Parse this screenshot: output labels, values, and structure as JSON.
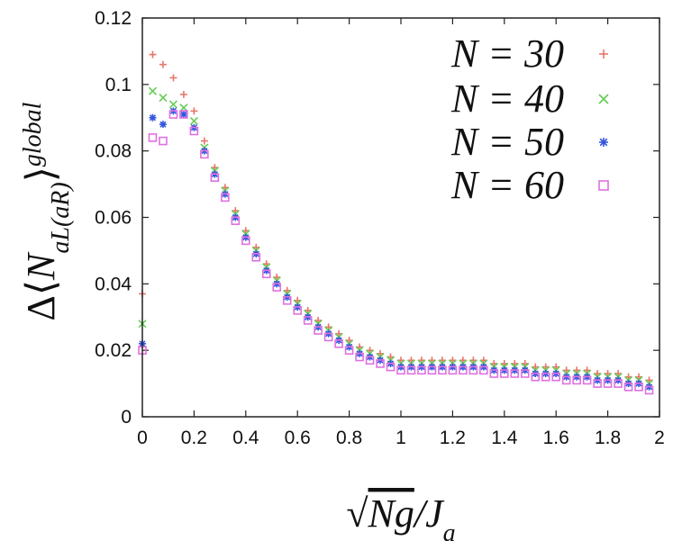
{
  "chart_data": {
    "type": "scatter",
    "xlabel": "√Ng/J_a",
    "ylabel": "Δ⟨N_aL(aR)⟩^global",
    "xlim": [
      0,
      2
    ],
    "ylim": [
      0,
      0.12
    ],
    "xticks": [
      "0",
      "0.2",
      "0.4",
      "0.6",
      "0.8",
      "1",
      "1.2",
      "1.4",
      "1.6",
      "1.8",
      "2"
    ],
    "yticks": [
      "0",
      "0.02",
      "0.04",
      "0.06",
      "0.08",
      "0.1",
      "0.12"
    ],
    "legend_position": "top-right",
    "x": [
      0,
      0.04,
      0.08,
      0.12,
      0.16,
      0.2,
      0.24,
      0.28,
      0.32,
      0.36,
      0.4,
      0.44,
      0.48,
      0.52,
      0.56,
      0.6,
      0.64,
      0.68,
      0.72,
      0.76,
      0.8,
      0.84,
      0.88,
      0.92,
      0.96,
      1.0,
      1.04,
      1.08,
      1.12,
      1.16,
      1.2,
      1.24,
      1.28,
      1.32,
      1.36,
      1.4,
      1.44,
      1.48,
      1.52,
      1.56,
      1.6,
      1.64,
      1.68,
      1.72,
      1.76,
      1.8,
      1.84,
      1.88,
      1.92,
      1.96
    ],
    "series": [
      {
        "name": "N = 30",
        "marker": "plus",
        "color": "#e8766a",
        "values": [
          0.037,
          0.109,
          0.106,
          0.102,
          0.097,
          0.092,
          0.083,
          0.075,
          0.069,
          0.062,
          0.056,
          0.051,
          0.046,
          0.042,
          0.038,
          0.035,
          0.032,
          0.029,
          0.027,
          0.025,
          0.023,
          0.021,
          0.02,
          0.019,
          0.018,
          0.017,
          0.017,
          0.017,
          0.017,
          0.017,
          0.017,
          0.017,
          0.017,
          0.017,
          0.016,
          0.016,
          0.016,
          0.016,
          0.015,
          0.015,
          0.015,
          0.014,
          0.014,
          0.014,
          0.013,
          0.013,
          0.013,
          0.012,
          0.012,
          0.011
        ]
      },
      {
        "name": "N = 40",
        "marker": "cross",
        "color": "#66cc55",
        "values": [
          0.028,
          0.098,
          0.096,
          0.094,
          0.093,
          0.089,
          0.081,
          0.074,
          0.068,
          0.061,
          0.055,
          0.05,
          0.045,
          0.041,
          0.037,
          0.034,
          0.031,
          0.028,
          0.026,
          0.024,
          0.022,
          0.02,
          0.019,
          0.018,
          0.017,
          0.016,
          0.016,
          0.016,
          0.016,
          0.016,
          0.016,
          0.016,
          0.016,
          0.016,
          0.015,
          0.015,
          0.015,
          0.015,
          0.014,
          0.014,
          0.014,
          0.013,
          0.013,
          0.013,
          0.012,
          0.012,
          0.012,
          0.011,
          0.011,
          0.01
        ]
      },
      {
        "name": "N = 50",
        "marker": "asterisk",
        "color": "#3355dd",
        "values": [
          0.022,
          0.09,
          0.088,
          0.092,
          0.091,
          0.087,
          0.08,
          0.073,
          0.067,
          0.06,
          0.054,
          0.049,
          0.044,
          0.04,
          0.036,
          0.033,
          0.03,
          0.027,
          0.025,
          0.023,
          0.021,
          0.019,
          0.018,
          0.017,
          0.016,
          0.015,
          0.015,
          0.015,
          0.015,
          0.015,
          0.015,
          0.015,
          0.015,
          0.015,
          0.014,
          0.014,
          0.014,
          0.014,
          0.013,
          0.013,
          0.013,
          0.012,
          0.012,
          0.012,
          0.011,
          0.011,
          0.011,
          0.01,
          0.01,
          0.009
        ]
      },
      {
        "name": "N = 60",
        "marker": "square",
        "color": "#e070e0",
        "values": [
          0.02,
          0.084,
          0.083,
          0.091,
          0.091,
          0.086,
          0.079,
          0.072,
          0.066,
          0.059,
          0.053,
          0.048,
          0.043,
          0.039,
          0.035,
          0.032,
          0.029,
          0.026,
          0.024,
          0.022,
          0.02,
          0.018,
          0.017,
          0.016,
          0.015,
          0.014,
          0.014,
          0.014,
          0.014,
          0.014,
          0.014,
          0.014,
          0.014,
          0.014,
          0.013,
          0.013,
          0.013,
          0.013,
          0.012,
          0.012,
          0.012,
          0.011,
          0.011,
          0.011,
          0.01,
          0.01,
          0.01,
          0.009,
          0.009,
          0.008
        ]
      }
    ]
  }
}
